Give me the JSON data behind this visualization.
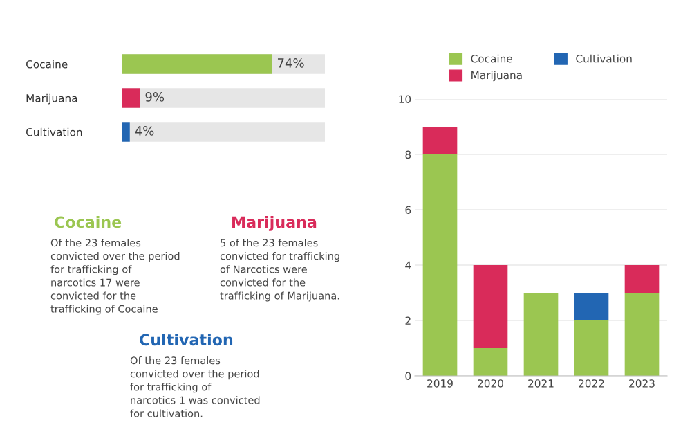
{
  "chart_data": [
    {
      "type": "bar",
      "orientation": "horizontal",
      "stacked": true,
      "categories": [
        "Cocaine",
        "Marijuana",
        "Cultivation"
      ],
      "xlim": [
        0,
        100
      ],
      "tick_labels": "y",
      "grid": false,
      "legend": false,
      "series": [
        {
          "colors": [
            "#9bc651",
            "#d92b5a",
            "#2266b3"
          ],
          "values": [
            74,
            9,
            4
          ],
          "value_labels": [
            "74%",
            "9%",
            "4%"
          ]
        }
      ]
    },
    {
      "type": "other",
      "annotations": [
        "Cocaine",
        "Of the 23 females\nconvicted over the period\nfor trafficking of\nnarcotics 17 were\nconvicted for the\ntrafficking of Cocaine",
        "Marijuana",
        "5 of the 23 females\nconvicted for trafficking\nof Narcotics were\nconvicted for the\ntrafficking of Marijuana.",
        "Cultivation",
        "Of the 23 females\nconvicted over the period\nfor trafficking of\nnarcotics 1 was convicted\nfor cultivation."
      ],
      "colors": [
        "#9bc651",
        "#444444",
        "#d92b5a",
        "#444444",
        "#2266b3",
        "#444444"
      ]
    },
    {
      "type": "bar",
      "stacked": true,
      "categories": [
        "2019",
        "2020",
        "2021",
        "2022",
        "2023"
      ],
      "ylim": [
        0,
        10
      ],
      "yticks": [
        0,
        2,
        4,
        6,
        8,
        10
      ],
      "grid": "y",
      "legend": "top",
      "series": [
        {
          "name": "Cocaine",
          "color": "#9bc651",
          "values": [
            8,
            1,
            3,
            2,
            3
          ]
        },
        {
          "name": "Marijuana",
          "color": "#d92b5a",
          "values": [
            1,
            3,
            0,
            0,
            1
          ]
        },
        {
          "name": "Cultivation",
          "color": "#2266b3",
          "values": [
            0,
            0,
            0,
            1,
            0
          ]
        }
      ]
    }
  ]
}
